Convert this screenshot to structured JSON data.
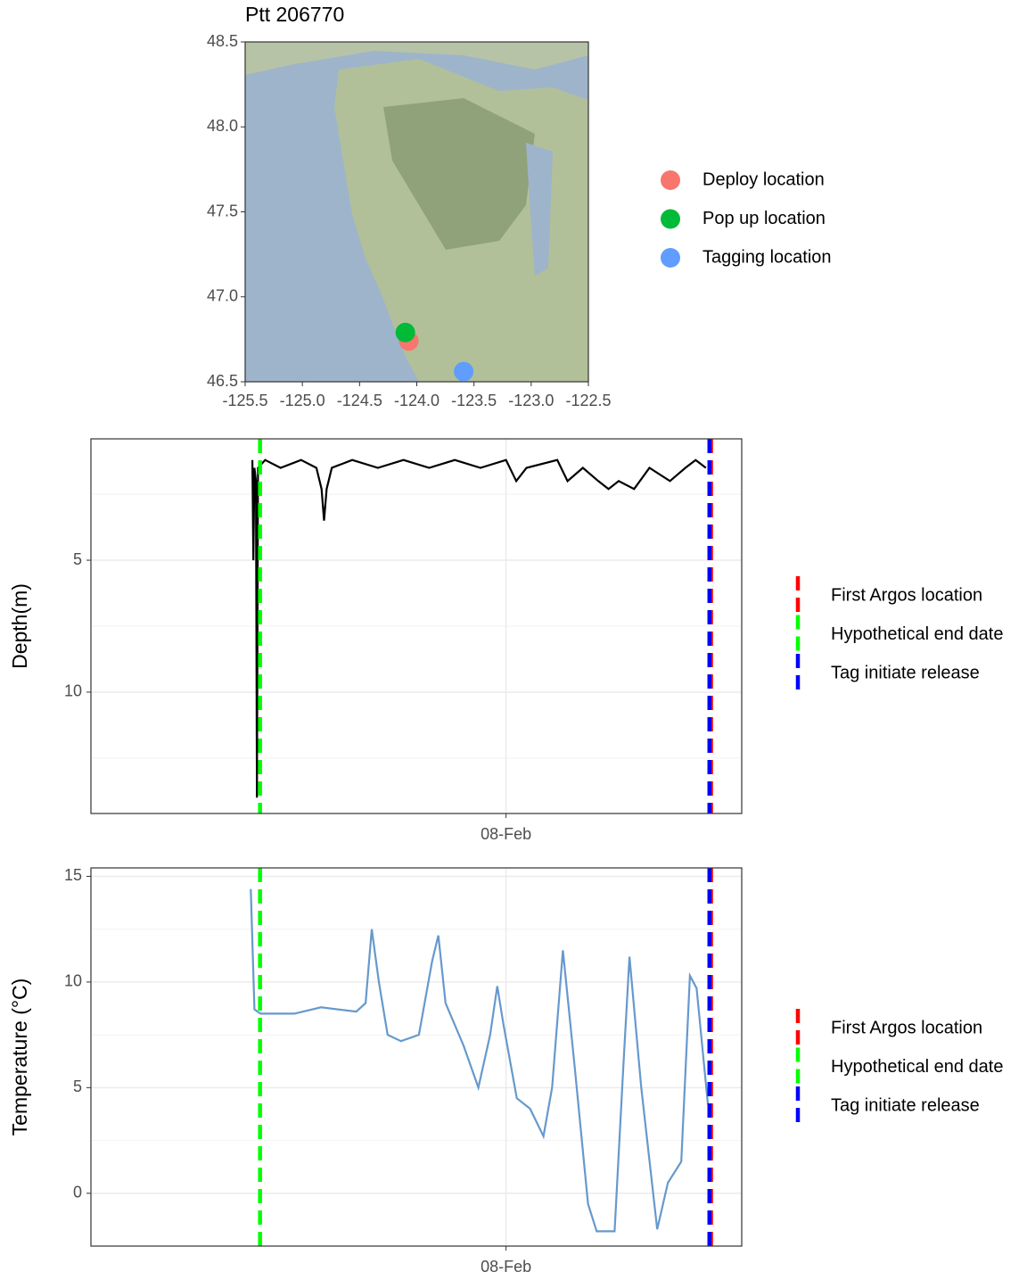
{
  "chart_data": [
    {
      "type": "scatter",
      "title": "Ptt 206770",
      "xlim": [
        -125.5,
        -122.5
      ],
      "xticks": [
        -125.5,
        {
          "value": -125,
          "label": "-125.0"
        },
        -124.5,
        {
          "value": -124,
          "label": "-124.0"
        },
        -123.5,
        {
          "value": -123,
          "label": "-123.0"
        },
        -122.5
      ],
      "ylim": [
        46.5,
        48.5
      ],
      "yticks": [
        46.5,
        {
          "value": 47,
          "label": "47.0"
        },
        47.5,
        {
          "value": 48,
          "label": "48.0"
        },
        48.5
      ],
      "legend_position": "right",
      "series": [
        {
          "name": "Deploy location",
          "color": "#F8766D",
          "x": [
            -124.07
          ],
          "y": [
            46.74
          ]
        },
        {
          "name": "Pop up location",
          "color": "#00BA38",
          "x": [
            -124.1
          ],
          "y": [
            46.79
          ]
        },
        {
          "name": "Tagging location",
          "color": "#619CFF",
          "x": [
            -123.59
          ],
          "y": [
            46.56
          ]
        }
      ]
    },
    {
      "type": "line",
      "y_label": "Depth(m)",
      "reverse_y": true,
      "grid": true,
      "legend_position": "right",
      "xlim": [
        7.19,
        8.46
      ],
      "xticks": [
        {
          "value": 8,
          "label": "08-Feb"
        }
      ],
      "ylim": [
        0.4,
        14.6
      ],
      "yticks": [
        5,
        10
      ],
      "series": [
        {
          "color": "#000000",
          "x": [
            7.505,
            7.507,
            7.509,
            7.512,
            7.514,
            7.516,
            7.53,
            7.56,
            7.6,
            7.63,
            7.64,
            7.645,
            7.65,
            7.66,
            7.7,
            7.75,
            7.8,
            7.85,
            7.9,
            7.95,
            8.0,
            8.02,
            8.04,
            8.1,
            8.12,
            8.15,
            8.18,
            8.2,
            8.22,
            8.25,
            8.28,
            8.32,
            8.35,
            8.37,
            8.39
          ],
          "values": [
            1.2,
            5.0,
            1.5,
            2.0,
            14.0,
            1.5,
            1.2,
            1.5,
            1.2,
            1.5,
            2.3,
            3.5,
            2.3,
            1.5,
            1.2,
            1.5,
            1.2,
            1.5,
            1.2,
            1.5,
            1.2,
            2.0,
            1.5,
            1.2,
            2.0,
            1.5,
            2.0,
            2.3,
            2.0,
            2.3,
            1.5,
            2.0,
            1.5,
            1.2,
            1.5
          ]
        }
      ],
      "vlines": [
        {
          "name": "First Argos location",
          "color": "#FF0000",
          "x": 8.4
        },
        {
          "name": "Hypothetical end date",
          "color": "#00FF00",
          "x": 7.52
        },
        {
          "name": "Tag initiate release",
          "color": "#0000FF",
          "x": 8.397
        }
      ]
    },
    {
      "type": "line",
      "y_label": "Temperature (°C)",
      "grid": true,
      "legend_position": "right",
      "xlim": [
        7.19,
        8.46
      ],
      "xticks": [
        {
          "value": 8,
          "label": "08-Feb"
        }
      ],
      "ylim": [
        -2.5,
        15.4
      ],
      "yticks": [
        0,
        5,
        10,
        15
      ],
      "series": [
        {
          "color": "#6699CC",
          "x": [
            7.502,
            7.509,
            7.521,
            7.587,
            7.639,
            7.708,
            7.726,
            7.738,
            7.752,
            7.769,
            7.795,
            7.83,
            7.856,
            7.868,
            7.882,
            7.917,
            7.946,
            7.969,
            7.983,
            7.995,
            8.021,
            8.047,
            8.073,
            8.09,
            8.111,
            8.134,
            8.16,
            8.177,
            8.212,
            8.229,
            8.241,
            8.264,
            8.295,
            8.316,
            8.342,
            8.359,
            8.372,
            8.394
          ],
          "values": [
            14.4,
            8.7,
            8.5,
            8.5,
            8.8,
            8.6,
            9.0,
            12.5,
            10.0,
            7.5,
            7.2,
            7.5,
            11.0,
            12.2,
            9.0,
            7.0,
            5.0,
            7.5,
            9.8,
            8.0,
            4.5,
            4.0,
            2.7,
            5.0,
            11.5,
            6.0,
            -0.5,
            -1.8,
            -1.8,
            6.0,
            11.2,
            5.0,
            -1.7,
            0.5,
            1.5,
            10.3,
            9.7,
            4.2
          ]
        }
      ],
      "vlines": [
        {
          "name": "First Argos location",
          "color": "#FF0000",
          "x": 8.4
        },
        {
          "name": "Hypothetical end date",
          "color": "#00FF00",
          "x": 7.52
        },
        {
          "name": "Tag initiate release",
          "color": "#0000FF",
          "x": 8.397
        }
      ]
    }
  ]
}
